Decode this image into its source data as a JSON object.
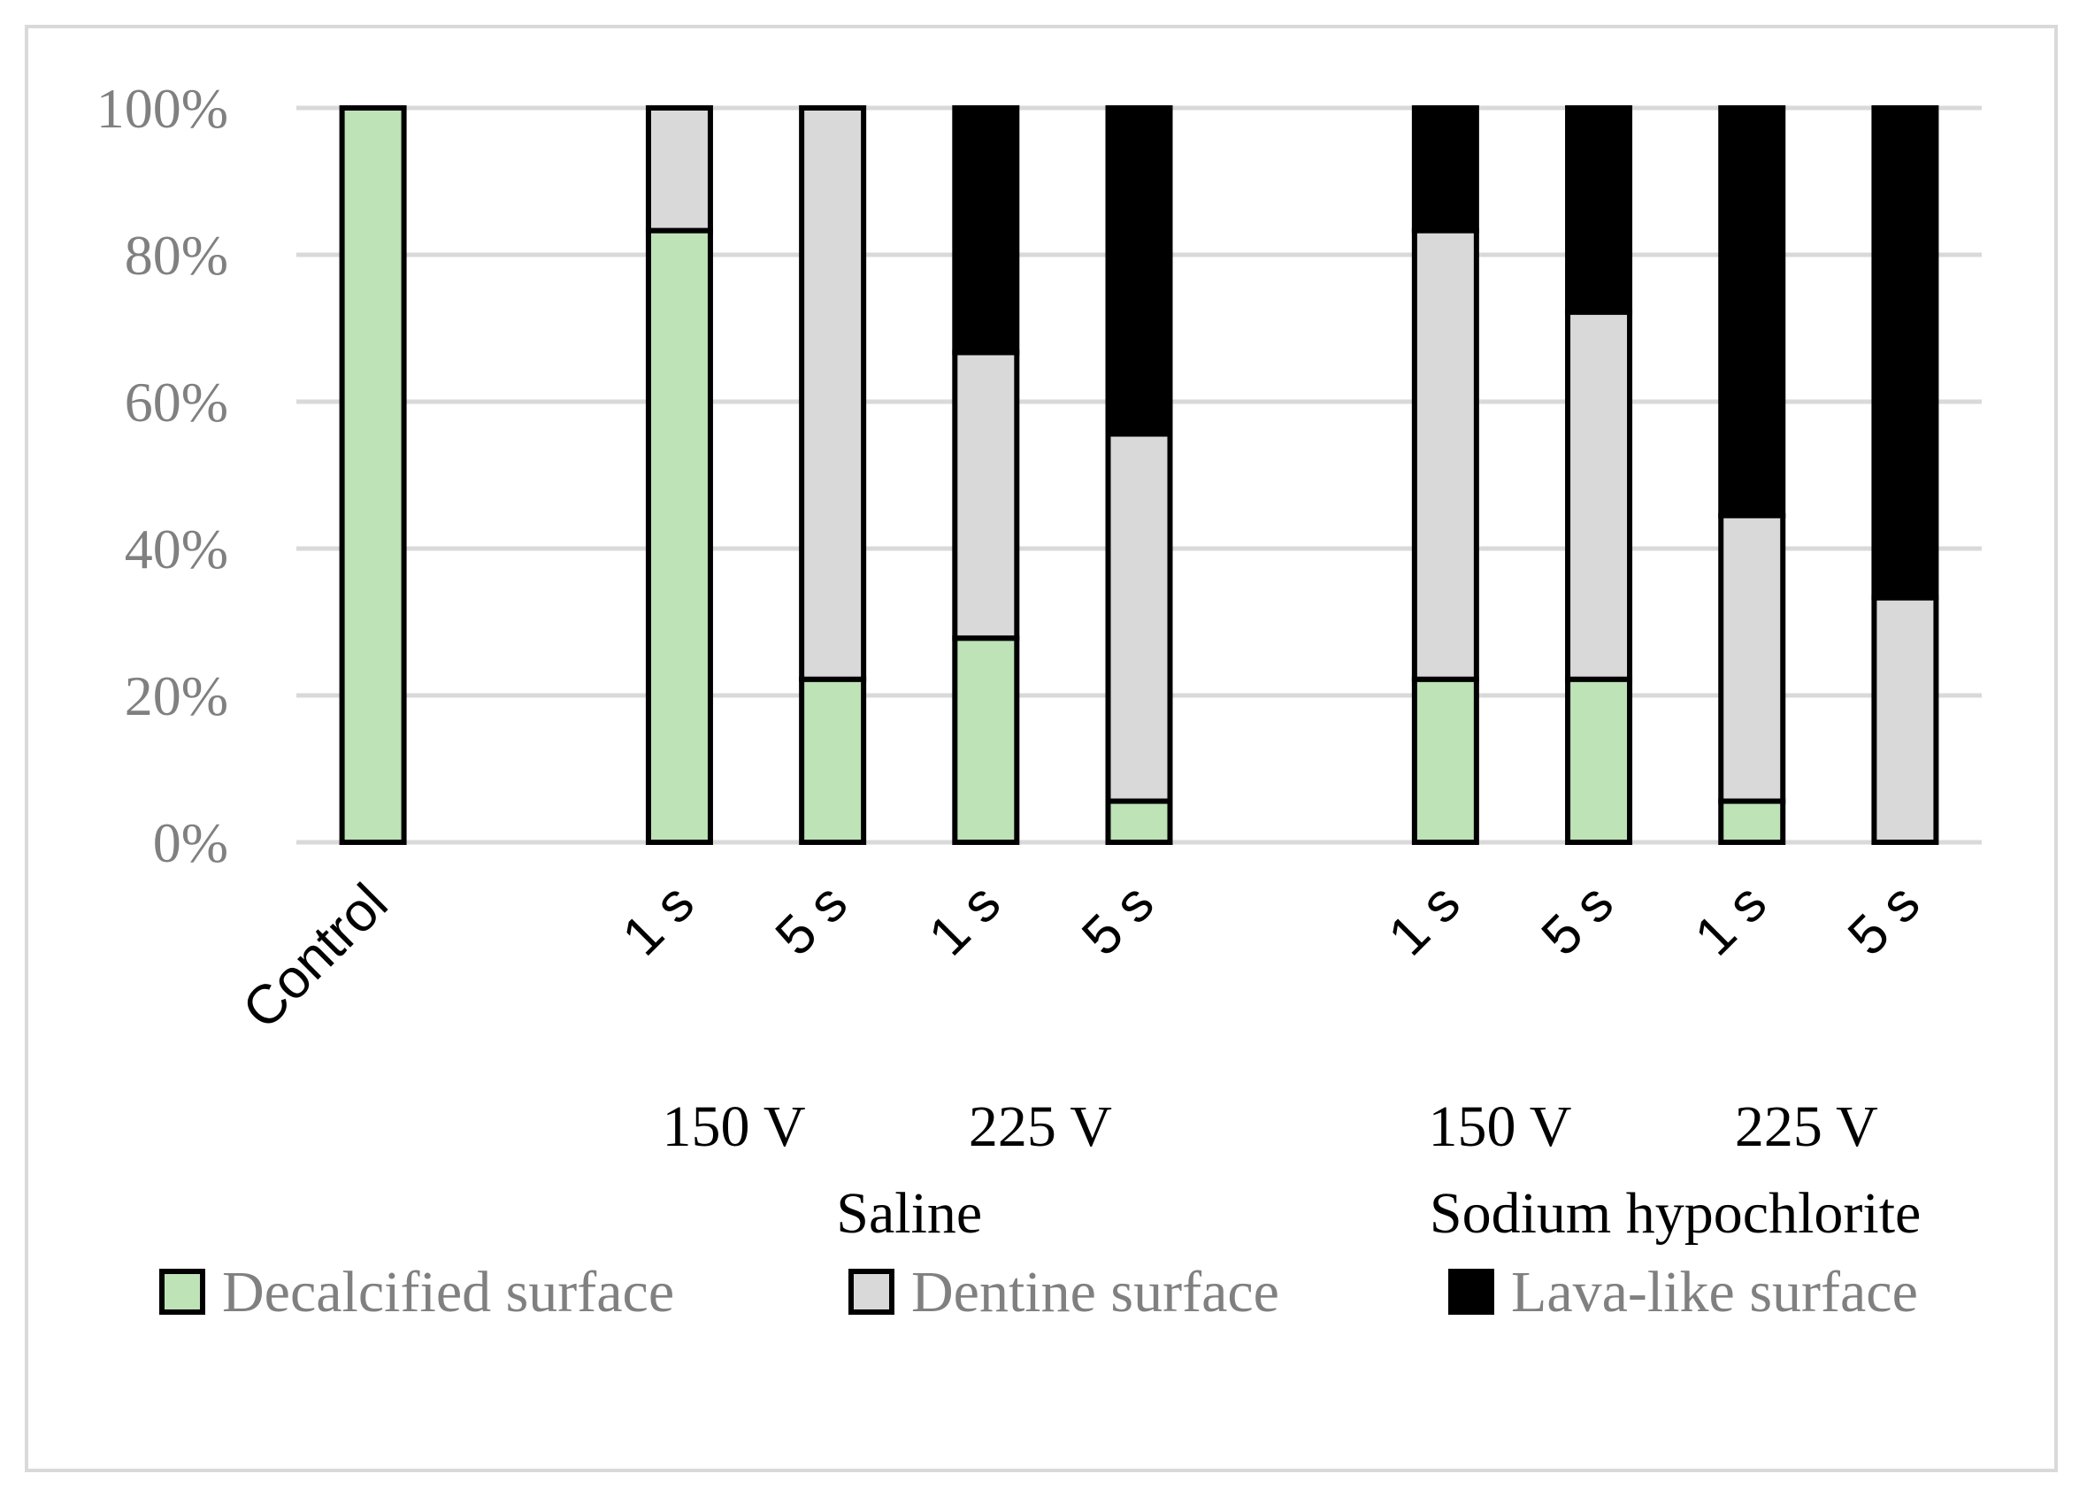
{
  "chart_data": {
    "type": "bar",
    "stacked": true,
    "yaxis": {
      "ylim": [
        0,
        100
      ],
      "ticks": [
        "0%",
        "20%",
        "40%",
        "60%",
        "80%",
        "100%"
      ],
      "grid": true
    },
    "categories": [
      "Control",
      "",
      "1 s",
      "5 s",
      "1 s",
      "5 s",
      "",
      "1 s",
      "5 s",
      "1 s",
      "5 s"
    ],
    "group_labels": {
      "voltage": [
        {
          "label": "150 V",
          "from": 2,
          "to": 3
        },
        {
          "label": "225 V",
          "from": 4,
          "to": 5
        },
        {
          "label": "150 V",
          "from": 7,
          "to": 8
        },
        {
          "label": "225 V",
          "from": 9,
          "to": 10
        }
      ],
      "solution": [
        {
          "label": "Saline",
          "from": 2,
          "to": 5
        },
        {
          "label": "Sodium hypochlorite",
          "from": 7,
          "to": 10
        }
      ]
    },
    "series": [
      {
        "name": "Decalcified surface",
        "color": "#bde3b6",
        "values": [
          100,
          null,
          83.3,
          22.2,
          27.8,
          5.6,
          null,
          22.2,
          22.2,
          5.6,
          0
        ]
      },
      {
        "name": "Dentine surface",
        "color": "#d9d9d9",
        "values": [
          0,
          null,
          16.7,
          77.8,
          38.9,
          50.0,
          null,
          61.1,
          50.0,
          38.9,
          33.3
        ]
      },
      {
        "name": "Lava-like surface",
        "color": "#000000",
        "values": [
          0,
          null,
          0,
          0,
          33.3,
          44.4,
          null,
          16.7,
          27.8,
          55.5,
          66.7
        ]
      }
    ],
    "legend_position": "bottom"
  }
}
